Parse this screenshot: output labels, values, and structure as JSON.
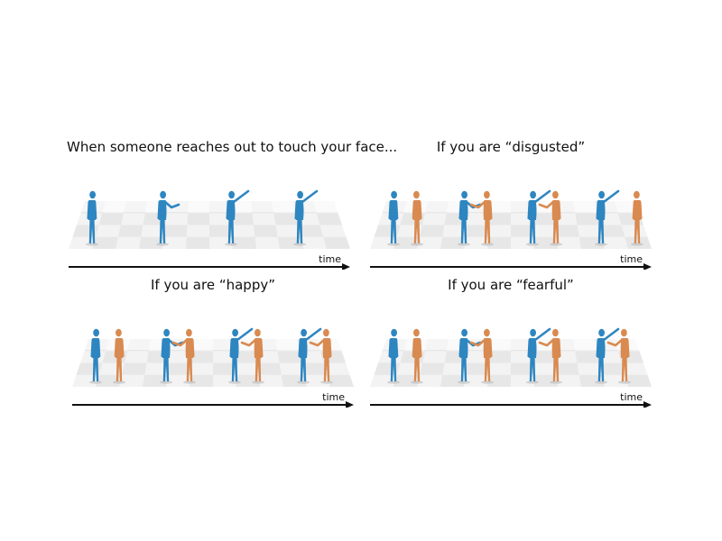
{
  "panels": [
    {
      "id": "tl",
      "title": "When someone reaches out to touch your face...",
      "time_label": "time",
      "frames": [
        {
          "blue_arm": "down",
          "orange": "none"
        },
        {
          "blue_arm": "forward",
          "orange": "none"
        },
        {
          "blue_arm": "up",
          "orange": "none"
        },
        {
          "blue_arm": "up",
          "orange": "none"
        }
      ]
    },
    {
      "id": "tr",
      "title": "If you are “disgusted”",
      "time_label": "time",
      "frames": [
        {
          "blue_arm": "down",
          "orange": "near"
        },
        {
          "blue_arm": "forward",
          "orange": "near"
        },
        {
          "blue_arm": "up",
          "orange": "near"
        },
        {
          "blue_arm": "up",
          "orange": "far"
        }
      ]
    },
    {
      "id": "bl",
      "title": "If you are “happy”",
      "time_label": "time",
      "frames": [
        {
          "blue_arm": "down",
          "orange": "near"
        },
        {
          "blue_arm": "forward",
          "orange": "near"
        },
        {
          "blue_arm": "up",
          "orange": "near"
        },
        {
          "blue_arm": "up",
          "orange": "near"
        }
      ]
    },
    {
      "id": "br",
      "title": "If you are “fearful”",
      "time_label": "time",
      "frames": [
        {
          "blue_arm": "down",
          "orange": "near"
        },
        {
          "blue_arm": "forward",
          "orange": "near"
        },
        {
          "blue_arm": "up",
          "orange": "near"
        },
        {
          "blue_arm": "up",
          "orange": "near"
        }
      ]
    }
  ],
  "colors": {
    "blue_figure": "#2e86c1",
    "orange_figure": "#d98a50",
    "floor_light": "#f3f3f3",
    "floor_dark": "#dcdcdc",
    "axis": "#111111"
  }
}
